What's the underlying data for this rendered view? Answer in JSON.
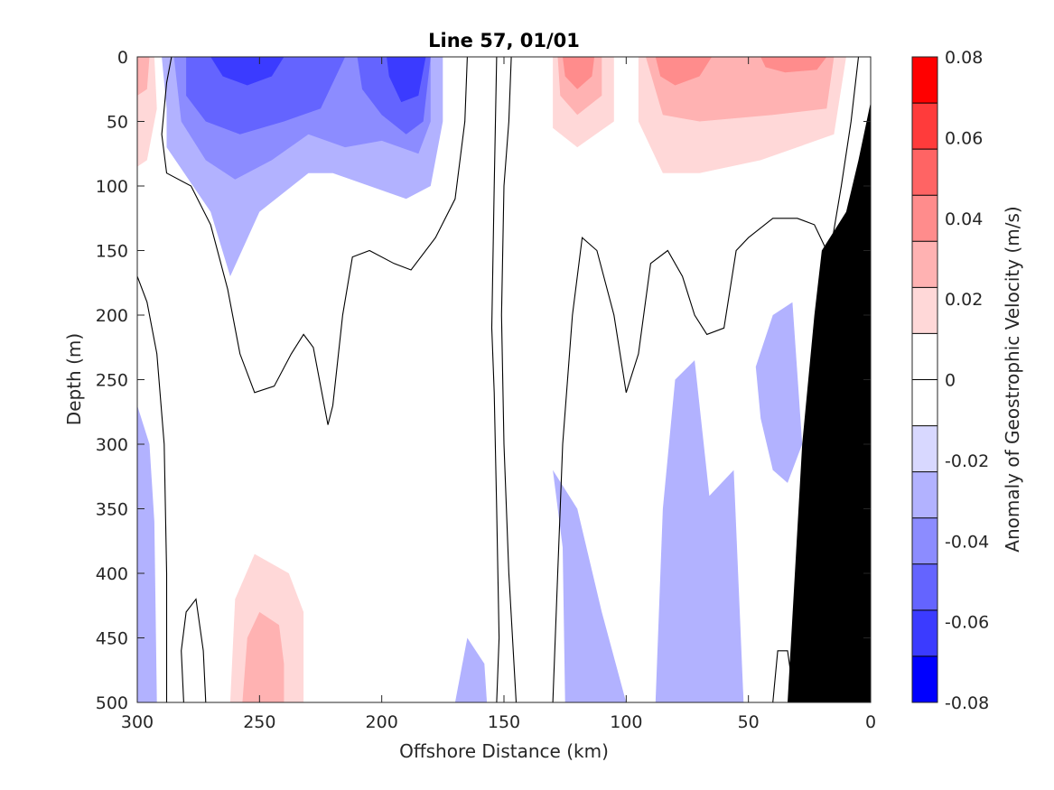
{
  "chart_data": {
    "type": "contour",
    "title": "Line 57, 01/01",
    "xlabel": "Offshore Distance (km)",
    "ylabel": "Depth (m)",
    "colorbar_label": "Anomaly of Geostrophic Velocity (m/s)",
    "xlim": [
      300,
      0
    ],
    "ylim": [
      500,
      0
    ],
    "x_ticks": [
      300,
      250,
      200,
      150,
      100,
      50,
      0
    ],
    "y_ticks": [
      0,
      50,
      100,
      150,
      200,
      250,
      300,
      350,
      400,
      450,
      500
    ],
    "colorbar": {
      "range": [
        -0.08,
        0.08
      ],
      "step": 0.01,
      "tick_values": [
        0.08,
        0.06,
        0.04,
        0.02,
        0,
        -0.02,
        -0.04,
        -0.06,
        -0.08
      ],
      "tick_labels": [
        "0.08",
        "0.06",
        "0.04",
        "0.02",
        "0",
        "-0.02",
        "-0.04",
        "-0.06",
        "-0.08"
      ],
      "colors_top_to_bottom": [
        "#ff0000",
        "#ff3b3b",
        "#ff6464",
        "#ff8c8c",
        "#ffb2b2",
        "#ffd8d8",
        "#ffffff",
        "#ffffff",
        "#d8d8ff",
        "#b2b2ff",
        "#8c8cff",
        "#6464ff",
        "#3b3bff",
        "#0000ff"
      ]
    },
    "bathymetry_color": "#000000",
    "bathymetry": [
      {
        "x": 34,
        "depth": 500
      },
      {
        "x": 28,
        "depth": 300
      },
      {
        "x": 23,
        "depth": 200
      },
      {
        "x": 20,
        "depth": 150
      },
      {
        "x": 10,
        "depth": 120
      },
      {
        "x": 5,
        "depth": 80
      },
      {
        "x": 0,
        "depth": 35
      }
    ],
    "regions": [
      {
        "level": 0.01,
        "points": [
          [
            300,
            0
          ],
          [
            292,
            0
          ],
          [
            290,
            30
          ],
          [
            291,
            80
          ],
          [
            293,
            100
          ],
          [
            298,
            120
          ],
          [
            300,
            130
          ]
        ]
      },
      {
        "level": 0.02,
        "points": [
          [
            300,
            0
          ],
          [
            293,
            0
          ],
          [
            292,
            40
          ],
          [
            296,
            80
          ],
          [
            300,
            85
          ]
        ]
      },
      {
        "level": 0.03,
        "points": [
          [
            300,
            0
          ],
          [
            295,
            0
          ],
          [
            296,
            25
          ],
          [
            300,
            30
          ]
        ]
      },
      {
        "level": 0.01,
        "points": [
          [
            172,
            0
          ],
          [
            163,
            0
          ],
          [
            162,
            25
          ],
          [
            166,
            45
          ],
          [
            171,
            40
          ]
        ]
      },
      {
        "level": 0.01,
        "points": [
          [
            140,
            0
          ],
          [
            0,
            0
          ],
          [
            0,
            25
          ],
          [
            20,
            70
          ],
          [
            50,
            90
          ],
          [
            70,
            115
          ],
          [
            85,
            125
          ],
          [
            100,
            110
          ],
          [
            120,
            80
          ],
          [
            140,
            70
          ]
        ]
      },
      {
        "level": 0.02,
        "points": [
          [
            130,
            0
          ],
          [
            105,
            0
          ],
          [
            105,
            50
          ],
          [
            120,
            70
          ],
          [
            130,
            55
          ]
        ]
      },
      {
        "level": 0.02,
        "points": [
          [
            95,
            0
          ],
          [
            10,
            0
          ],
          [
            15,
            60
          ],
          [
            45,
            80
          ],
          [
            70,
            90
          ],
          [
            85,
            90
          ],
          [
            95,
            50
          ]
        ]
      },
      {
        "level": 0.03,
        "points": [
          [
            128,
            0
          ],
          [
            110,
            0
          ],
          [
            110,
            30
          ],
          [
            120,
            45
          ],
          [
            127,
            30
          ]
        ]
      },
      {
        "level": 0.03,
        "points": [
          [
            92,
            0
          ],
          [
            15,
            0
          ],
          [
            18,
            40
          ],
          [
            40,
            45
          ],
          [
            70,
            50
          ],
          [
            85,
            45
          ]
        ]
      },
      {
        "level": 0.04,
        "points": [
          [
            126,
            0
          ],
          [
            113,
            0
          ],
          [
            114,
            15
          ],
          [
            120,
            25
          ],
          [
            125,
            15
          ]
        ]
      },
      {
        "level": 0.04,
        "points": [
          [
            88,
            0
          ],
          [
            65,
            0
          ],
          [
            70,
            15
          ],
          [
            80,
            22
          ],
          [
            86,
            15
          ]
        ]
      },
      {
        "level": 0.04,
        "points": [
          [
            45,
            0
          ],
          [
            18,
            0
          ],
          [
            22,
            10
          ],
          [
            35,
            12
          ],
          [
            43,
            8
          ]
        ]
      },
      {
        "level": 0.01,
        "points": [
          [
            268,
            500
          ],
          [
            264,
            400
          ],
          [
            258,
            300
          ],
          [
            262,
            230
          ],
          [
            248,
            290
          ],
          [
            233,
            325
          ],
          [
            218,
            360
          ],
          [
            208,
            390
          ],
          [
            204,
            360
          ],
          [
            196,
            320
          ],
          [
            184,
            270
          ],
          [
            175,
            200
          ],
          [
            175,
            500
          ]
        ]
      },
      {
        "level": 0.02,
        "points": [
          [
            262,
            500
          ],
          [
            260,
            420
          ],
          [
            252,
            385
          ],
          [
            238,
            400
          ],
          [
            232,
            430
          ],
          [
            232,
            500
          ]
        ]
      },
      {
        "level": 0.03,
        "points": [
          [
            257,
            500
          ],
          [
            255,
            450
          ],
          [
            250,
            430
          ],
          [
            242,
            440
          ],
          [
            240,
            470
          ],
          [
            240,
            500
          ]
        ]
      },
      {
        "level": -0.01,
        "points": [
          [
            290,
            0
          ],
          [
            175,
            0
          ],
          [
            175,
            50
          ],
          [
            180,
            100
          ],
          [
            190,
            110
          ],
          [
            205,
            100
          ],
          [
            220,
            90
          ],
          [
            230,
            90
          ],
          [
            250,
            120
          ],
          [
            262,
            170
          ],
          [
            270,
            120
          ],
          [
            288,
            70
          ],
          [
            288,
            40
          ]
        ]
      },
      {
        "level": -0.02,
        "points": [
          [
            285,
            0
          ],
          [
            180,
            0
          ],
          [
            180,
            50
          ],
          [
            185,
            75
          ],
          [
            200,
            65
          ],
          [
            215,
            70
          ],
          [
            230,
            60
          ],
          [
            245,
            80
          ],
          [
            260,
            95
          ],
          [
            272,
            80
          ],
          [
            282,
            50
          ]
        ]
      },
      {
        "level": -0.03,
        "points": [
          [
            280,
            0
          ],
          [
            215,
            0
          ],
          [
            225,
            40
          ],
          [
            240,
            50
          ],
          [
            258,
            60
          ],
          [
            272,
            50
          ],
          [
            280,
            30
          ]
        ]
      },
      {
        "level": -0.03,
        "points": [
          [
            210,
            0
          ],
          [
            180,
            0
          ],
          [
            183,
            50
          ],
          [
            190,
            60
          ],
          [
            200,
            45
          ],
          [
            208,
            25
          ]
        ]
      },
      {
        "level": -0.04,
        "points": [
          [
            270,
            0
          ],
          [
            240,
            0
          ],
          [
            245,
            15
          ],
          [
            255,
            22
          ],
          [
            265,
            15
          ]
        ]
      },
      {
        "level": -0.04,
        "points": [
          [
            198,
            0
          ],
          [
            182,
            0
          ],
          [
            185,
            30
          ],
          [
            192,
            35
          ],
          [
            197,
            15
          ]
        ]
      },
      {
        "level": -0.01,
        "points": [
          [
            300,
            270
          ],
          [
            295,
            300
          ],
          [
            293,
            360
          ],
          [
            292,
            500
          ],
          [
            300,
            500
          ]
        ]
      },
      {
        "level": -0.01,
        "points": [
          [
            125,
            500
          ],
          [
            126,
            380
          ],
          [
            130,
            320
          ],
          [
            120,
            350
          ],
          [
            110,
            430
          ],
          [
            100,
            500
          ]
        ]
      },
      {
        "level": -0.01,
        "points": [
          [
            88,
            500
          ],
          [
            85,
            350
          ],
          [
            80,
            250
          ],
          [
            72,
            235
          ],
          [
            66,
            340
          ],
          [
            56,
            320
          ],
          [
            52,
            500
          ]
        ]
      },
      {
        "level": -0.01,
        "points": [
          [
            47,
            240
          ],
          [
            40,
            200
          ],
          [
            32,
            190
          ],
          [
            28,
            300
          ],
          [
            34,
            330
          ],
          [
            40,
            320
          ],
          [
            45,
            280
          ]
        ]
      },
      {
        "level": -0.01,
        "points": [
          [
            170,
            500
          ],
          [
            165,
            450
          ],
          [
            158,
            470
          ],
          [
            157,
            500
          ]
        ]
      }
    ],
    "zero_contours": [
      [
        [
          286,
          0
        ],
        [
          288,
          20
        ],
        [
          290,
          60
        ],
        [
          288,
          90
        ],
        [
          278,
          100
        ],
        [
          270,
          130
        ],
        [
          263,
          180
        ],
        [
          258,
          230
        ],
        [
          252,
          260
        ],
        [
          244,
          255
        ],
        [
          237,
          230
        ],
        [
          232,
          215
        ],
        [
          228,
          225
        ],
        [
          222,
          285
        ],
        [
          220,
          270
        ],
        [
          216,
          200
        ],
        [
          212,
          155
        ],
        [
          205,
          150
        ],
        [
          195,
          160
        ],
        [
          188,
          165
        ],
        [
          178,
          140
        ],
        [
          170,
          110
        ],
        [
          166,
          50
        ],
        [
          165,
          0
        ]
      ],
      [
        [
          300,
          170
        ],
        [
          296,
          190
        ],
        [
          292,
          230
        ],
        [
          289,
          300
        ],
        [
          288,
          400
        ],
        [
          288,
          500
        ]
      ],
      [
        [
          281,
          500
        ],
        [
          282,
          460
        ],
        [
          280,
          430
        ],
        [
          276,
          420
        ],
        [
          273,
          460
        ],
        [
          272,
          500
        ]
      ],
      [
        [
          153,
          0
        ],
        [
          154,
          100
        ],
        [
          155,
          210
        ],
        [
          154,
          260
        ],
        [
          153,
          350
        ],
        [
          152,
          450
        ],
        [
          153,
          500
        ]
      ],
      [
        [
          147,
          0
        ],
        [
          148,
          50
        ],
        [
          150,
          100
        ],
        [
          151,
          200
        ],
        [
          150,
          300
        ],
        [
          148,
          400
        ],
        [
          145,
          500
        ]
      ],
      [
        [
          130,
          500
        ],
        [
          128,
          400
        ],
        [
          126,
          300
        ],
        [
          122,
          200
        ],
        [
          118,
          140
        ],
        [
          112,
          150
        ],
        [
          105,
          200
        ],
        [
          100,
          260
        ],
        [
          95,
          230
        ],
        [
          90,
          160
        ],
        [
          83,
          150
        ],
        [
          77,
          170
        ],
        [
          72,
          200
        ],
        [
          67,
          215
        ],
        [
          60,
          210
        ],
        [
          55,
          150
        ],
        [
          50,
          140
        ],
        [
          40,
          125
        ],
        [
          30,
          125
        ],
        [
          23,
          130
        ],
        [
          18,
          150
        ],
        [
          16,
          145
        ],
        [
          12,
          100
        ],
        [
          8,
          50
        ],
        [
          5,
          0
        ]
      ],
      [
        [
          40,
          500
        ],
        [
          38,
          460
        ],
        [
          34,
          460
        ],
        [
          31,
          500
        ]
      ]
    ]
  }
}
